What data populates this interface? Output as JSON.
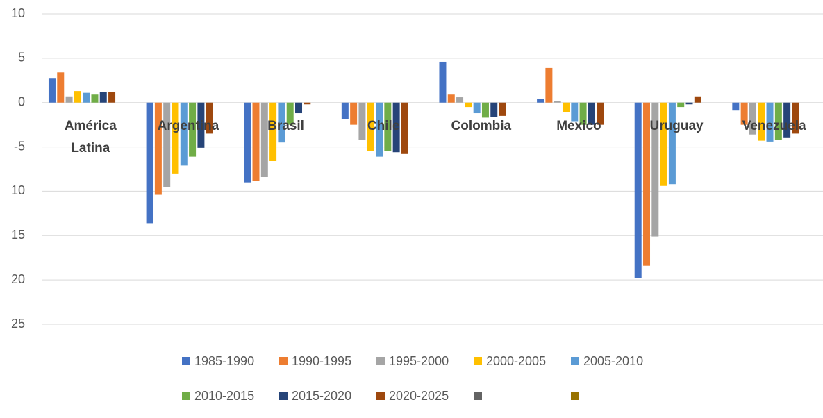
{
  "chart_data": {
    "type": "bar",
    "categories": [
      "América Latina",
      "Argentina",
      "Brasil",
      "Chile",
      "Colombia",
      "Mexico",
      "Uruguay",
      "Venezuela"
    ],
    "series": [
      {
        "name": "1985-1990",
        "color": "#4472c4",
        "values": [
          2.7,
          -13.6,
          -9.0,
          -1.9,
          4.6,
          0.4,
          -19.8,
          -0.9
        ]
      },
      {
        "name": "1990-1995",
        "color": "#ed7d31",
        "values": [
          3.4,
          -10.4,
          -8.8,
          -2.5,
          0.9,
          3.9,
          -18.4,
          -2.5
        ]
      },
      {
        "name": "1995-2000",
        "color": "#a5a5a5",
        "values": [
          0.7,
          -9.5,
          -8.4,
          -4.2,
          0.6,
          0.2,
          -15.1,
          -3.6
        ]
      },
      {
        "name": "2000-2005",
        "color": "#ffc000",
        "values": [
          1.3,
          -8.0,
          -6.6,
          -5.5,
          -0.5,
          -1.1,
          -9.4,
          -4.3
        ]
      },
      {
        "name": "2005-2010",
        "color": "#5b9bd5",
        "values": [
          1.1,
          -7.1,
          -4.5,
          -6.1,
          -1.2,
          -2.1,
          -9.2,
          -4.4
        ]
      },
      {
        "name": "2010-2015",
        "color": "#70ad47",
        "values": [
          0.9,
          -6.1,
          -2.5,
          -5.5,
          -1.7,
          -2.5,
          -0.5,
          -4.2
        ]
      },
      {
        "name": "2015-2020",
        "color": "#264478",
        "values": [
          1.2,
          -5.1,
          -1.2,
          -5.6,
          -1.6,
          -2.5,
          -0.2,
          -4.0
        ]
      },
      {
        "name": "2020-2025",
        "color": "#9e480e",
        "values": [
          1.2,
          -3.5,
          -0.2,
          -5.8,
          -1.5,
          -2.5,
          0.7,
          -3.5
        ]
      },
      {
        "name": null,
        "color": "#636363",
        "values": [
          null,
          null,
          null,
          null,
          null,
          null,
          null,
          null
        ]
      },
      {
        "name": null,
        "color": "#997300",
        "values": [
          null,
          null,
          null,
          null,
          null,
          null,
          null,
          null
        ]
      }
    ],
    "ylim": [
      -25,
      10
    ],
    "yticks": [
      {
        "value": -25,
        "label": "25"
      },
      {
        "value": -20,
        "label": "20"
      },
      {
        "value": -15,
        "label": "15"
      },
      {
        "value": -10,
        "label": "10"
      },
      -5,
      0,
      5,
      10
    ],
    "grid": true
  }
}
